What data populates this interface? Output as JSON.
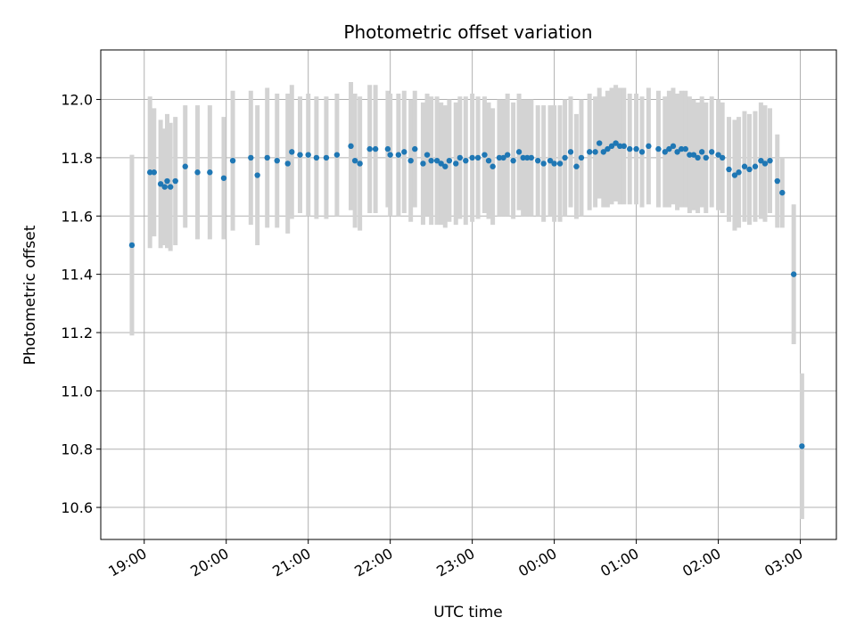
{
  "chart_data": {
    "type": "scatter",
    "title": "Photometric offset variation",
    "xlabel": "UTC time",
    "ylabel": "Photometric offset",
    "x_ticks": [
      "19:00",
      "20:00",
      "21:00",
      "22:00",
      "23:00",
      "00:00",
      "01:00",
      "02:00",
      "03:00"
    ],
    "x_tick_hours": [
      19,
      20,
      21,
      22,
      23,
      24,
      25,
      26,
      27
    ],
    "xlim_hours": [
      18.47,
      27.44
    ],
    "y_ticks": [
      "10.6",
      "10.8",
      "11.0",
      "11.2",
      "11.4",
      "11.6",
      "11.8",
      "12.0"
    ],
    "y_tick_values": [
      10.6,
      10.8,
      11.0,
      11.2,
      11.4,
      11.6,
      11.8,
      12.0
    ],
    "ylim": [
      10.49,
      12.17
    ],
    "grid": true,
    "colors": {
      "point": "#1f77b4",
      "errorbar": "#d3d3d3",
      "grid": "#b0b0b0"
    },
    "series": [
      {
        "x": [
          18.85,
          19.07,
          19.12,
          19.2,
          19.25,
          19.28,
          19.32,
          19.38,
          19.5,
          19.65,
          19.8,
          19.97,
          20.08,
          20.3,
          20.38,
          20.5,
          20.62,
          20.75,
          20.8,
          20.9,
          21.0,
          21.1,
          21.22,
          21.35,
          21.52,
          21.57,
          21.63,
          21.75,
          21.82,
          21.97,
          22.0,
          22.1,
          22.17,
          22.25,
          22.3,
          22.4,
          22.45,
          22.5,
          22.57,
          22.62,
          22.67,
          22.72,
          22.8,
          22.85,
          22.92,
          23.0,
          23.07,
          23.15,
          23.2,
          23.25,
          23.33,
          23.38,
          23.43,
          23.5,
          23.57,
          23.62,
          23.67,
          23.72,
          23.8,
          23.87,
          23.95,
          24.0,
          24.07,
          24.13,
          24.2,
          24.27,
          24.33,
          24.43,
          24.5,
          24.55,
          24.6,
          24.65,
          24.7,
          24.75,
          24.8,
          24.85,
          24.92,
          25.0,
          25.07,
          25.15,
          25.27,
          25.35,
          25.4,
          25.45,
          25.5,
          25.55,
          25.6,
          25.65,
          25.7,
          25.75,
          25.8,
          25.85,
          25.92,
          26.0,
          26.05,
          26.13,
          26.2,
          26.25,
          26.32,
          26.38,
          26.45,
          26.52,
          26.57,
          26.63,
          26.72,
          26.78,
          26.92,
          27.02
        ],
        "y": [
          11.5,
          11.75,
          11.75,
          11.71,
          11.7,
          11.72,
          11.7,
          11.72,
          11.77,
          11.75,
          11.75,
          11.73,
          11.79,
          11.8,
          11.74,
          11.8,
          11.79,
          11.78,
          11.82,
          11.81,
          11.81,
          11.8,
          11.8,
          11.81,
          11.84,
          11.79,
          11.78,
          11.83,
          11.83,
          11.83,
          11.81,
          11.81,
          11.82,
          11.79,
          11.83,
          11.78,
          11.81,
          11.79,
          11.79,
          11.78,
          11.77,
          11.79,
          11.78,
          11.8,
          11.79,
          11.8,
          11.8,
          11.81,
          11.79,
          11.77,
          11.8,
          11.8,
          11.81,
          11.79,
          11.82,
          11.8,
          11.8,
          11.8,
          11.79,
          11.78,
          11.79,
          11.78,
          11.78,
          11.8,
          11.82,
          11.77,
          11.8,
          11.82,
          11.82,
          11.85,
          11.82,
          11.83,
          11.84,
          11.85,
          11.84,
          11.84,
          11.83,
          11.83,
          11.82,
          11.84,
          11.83,
          11.82,
          11.83,
          11.84,
          11.82,
          11.83,
          11.83,
          11.81,
          11.81,
          11.8,
          11.82,
          11.8,
          11.82,
          11.81,
          11.8,
          11.76,
          11.74,
          11.75,
          11.77,
          11.76,
          11.77,
          11.79,
          11.78,
          11.79,
          11.72,
          11.68,
          11.4,
          10.81
        ],
        "err": [
          0.31,
          0.26,
          0.22,
          0.22,
          0.2,
          0.23,
          0.22,
          0.22,
          0.21,
          0.23,
          0.23,
          0.21,
          0.24,
          0.23,
          0.24,
          0.24,
          0.23,
          0.24,
          0.23,
          0.2,
          0.21,
          0.21,
          0.21,
          0.21,
          0.22,
          0.23,
          0.23,
          0.22,
          0.22,
          0.2,
          0.21,
          0.21,
          0.21,
          0.21,
          0.2,
          0.21,
          0.21,
          0.22,
          0.22,
          0.21,
          0.21,
          0.21,
          0.21,
          0.21,
          0.22,
          0.22,
          0.21,
          0.2,
          0.2,
          0.2,
          0.2,
          0.2,
          0.21,
          0.2,
          0.2,
          0.2,
          0.2,
          0.2,
          0.19,
          0.2,
          0.19,
          0.2,
          0.2,
          0.2,
          0.19,
          0.18,
          0.2,
          0.2,
          0.19,
          0.19,
          0.19,
          0.2,
          0.2,
          0.2,
          0.2,
          0.2,
          0.19,
          0.19,
          0.19,
          0.2,
          0.2,
          0.19,
          0.2,
          0.2,
          0.2,
          0.2,
          0.2,
          0.2,
          0.19,
          0.19,
          0.19,
          0.19,
          0.19,
          0.19,
          0.19,
          0.18,
          0.19,
          0.19,
          0.19,
          0.19,
          0.19,
          0.2,
          0.2,
          0.18,
          0.16,
          0.12,
          0.24,
          0.25
        ]
      }
    ]
  }
}
